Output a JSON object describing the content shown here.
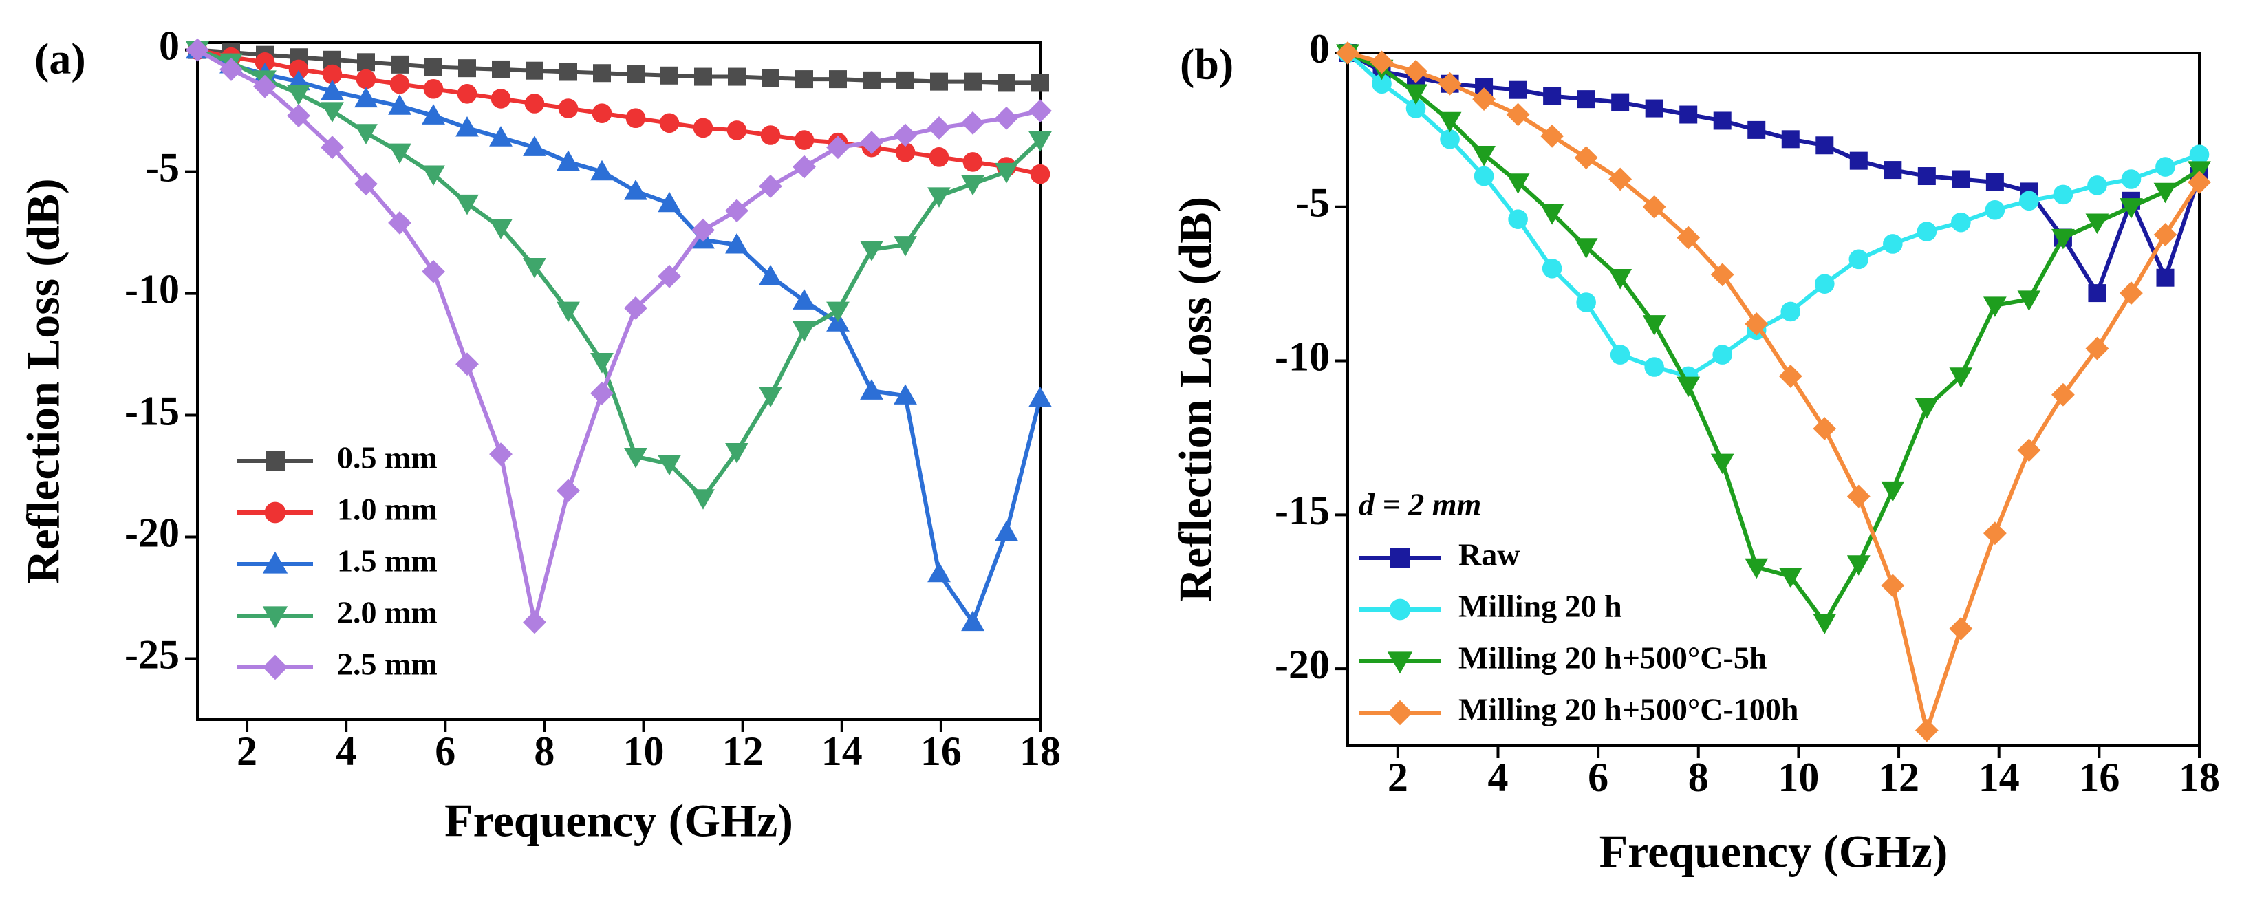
{
  "chart_data": [
    {
      "type": "line",
      "panel_label": "(a)",
      "xlabel": "Frequency (GHz)",
      "ylabel": "Reflection Loss (dB)",
      "xlim": [
        1,
        18
      ],
      "ylim": [
        -27.5,
        0.3
      ],
      "xticks": [
        2,
        4,
        6,
        8,
        10,
        12,
        14,
        16,
        18
      ],
      "yticks": [
        0,
        -5,
        -10,
        -15,
        -20,
        -25
      ],
      "legend": "lower left",
      "x": [
        1,
        1.68,
        2.36,
        3.04,
        3.72,
        4.4,
        5.08,
        5.76,
        6.44,
        7.12,
        7.8,
        8.48,
        9.16,
        9.84,
        10.52,
        11.2,
        11.88,
        12.56,
        13.24,
        13.92,
        14.6,
        15.28,
        15.96,
        16.64,
        17.32,
        18
      ],
      "series": [
        {
          "name": "0.5 mm",
          "color": "#4d4d4d",
          "marker": "square",
          "values": [
            0,
            -0.1,
            -0.2,
            -0.3,
            -0.4,
            -0.5,
            -0.6,
            -0.7,
            -0.75,
            -0.8,
            -0.85,
            -0.9,
            -0.95,
            -1.0,
            -1.05,
            -1.1,
            -1.1,
            -1.15,
            -1.2,
            -1.2,
            -1.25,
            -1.25,
            -1.3,
            -1.3,
            -1.35,
            -1.35
          ]
        },
        {
          "name": "1.0 mm",
          "color": "#ee3333",
          "marker": "circle",
          "values": [
            0,
            -0.3,
            -0.5,
            -0.8,
            -1.0,
            -1.2,
            -1.4,
            -1.6,
            -1.8,
            -2.0,
            -2.2,
            -2.4,
            -2.6,
            -2.8,
            -3.0,
            -3.2,
            -3.3,
            -3.5,
            -3.7,
            -3.8,
            -4.0,
            -4.2,
            -4.4,
            -4.6,
            -4.8,
            -5.1
          ]
        },
        {
          "name": "1.5 mm",
          "color": "#2c6fd6",
          "marker": "triangle-up",
          "values": [
            0,
            -0.6,
            -1.0,
            -1.3,
            -1.7,
            -2.0,
            -2.3,
            -2.7,
            -3.2,
            -3.6,
            -4.0,
            -4.6,
            -5.0,
            -5.8,
            -6.3,
            -7.8,
            -8.0,
            -9.3,
            -10.3,
            -11.2,
            -14.0,
            -14.2,
            -21.5,
            -23.5,
            -19.8,
            -14.3
          ]
        },
        {
          "name": "2.0 mm",
          "color": "#3fa66b",
          "marker": "triangle-down",
          "values": [
            0,
            -0.5,
            -1.2,
            -1.8,
            -2.5,
            -3.4,
            -4.2,
            -5.1,
            -6.3,
            -7.3,
            -8.9,
            -10.7,
            -12.8,
            -16.7,
            -17.0,
            -18.4,
            -16.5,
            -14.2,
            -11.5,
            -10.7,
            -8.2,
            -8.0,
            -6.0,
            -5.5,
            -5.0,
            -3.7
          ]
        },
        {
          "name": "2.5 mm",
          "color": "#b07fe0",
          "marker": "diamond",
          "values": [
            0,
            -0.8,
            -1.5,
            -2.7,
            -4.0,
            -5.5,
            -7.1,
            -9.1,
            -12.9,
            -16.6,
            -23.5,
            -18.1,
            -14.1,
            -10.6,
            -9.3,
            -7.4,
            -6.6,
            -5.6,
            -4.8,
            -4.0,
            -3.8,
            -3.5,
            -3.2,
            -3.0,
            -2.8,
            -2.5
          ]
        }
      ]
    },
    {
      "type": "line",
      "panel_label": "(b)",
      "xlabel": "Frequency (GHz)",
      "ylabel": "Reflection Loss (dB)",
      "xlim": [
        1,
        18
      ],
      "ylim": [
        -22.5,
        0
      ],
      "xticks": [
        2,
        4,
        6,
        8,
        10,
        12,
        14,
        16,
        18
      ],
      "yticks": [
        0,
        -5,
        -10,
        -15,
        -20
      ],
      "legend": "lower left",
      "annotation": "d = 2 mm",
      "x": [
        1,
        1.68,
        2.36,
        3.04,
        3.72,
        4.4,
        5.08,
        5.76,
        6.44,
        7.12,
        7.8,
        8.48,
        9.16,
        9.84,
        10.52,
        11.2,
        11.88,
        12.56,
        13.24,
        13.92,
        14.6,
        15.28,
        15.96,
        16.64,
        17.32,
        18
      ],
      "series": [
        {
          "name": "Raw",
          "color": "#1a1a9e",
          "marker": "square",
          "values": [
            0,
            -0.6,
            -0.8,
            -1.0,
            -1.1,
            -1.2,
            -1.4,
            -1.5,
            -1.6,
            -1.8,
            -2.0,
            -2.2,
            -2.5,
            -2.8,
            -3.0,
            -3.5,
            -3.8,
            -4.0,
            -4.1,
            -4.2,
            -4.5,
            -6.0,
            -7.8,
            -4.8,
            -7.3,
            -4.0
          ]
        },
        {
          "name": "Milling 20 h",
          "color": "#33e6f0",
          "marker": "circle",
          "values": [
            0,
            -1.0,
            -1.8,
            -2.8,
            -4.0,
            -5.4,
            -7.0,
            -8.1,
            -9.8,
            -10.2,
            -10.5,
            -9.8,
            -9.0,
            -8.4,
            -7.5,
            -6.7,
            -6.2,
            -5.8,
            -5.5,
            -5.1,
            -4.8,
            -4.6,
            -4.3,
            -4.1,
            -3.7,
            -3.3
          ]
        },
        {
          "name": "Milling 20 h+500°C-5h",
          "color": "#1e9e1e",
          "marker": "triangle-down",
          "values": [
            0,
            -0.5,
            -1.3,
            -2.2,
            -3.3,
            -4.2,
            -5.2,
            -6.3,
            -7.3,
            -8.8,
            -10.8,
            -13.3,
            -16.7,
            -17.0,
            -18.5,
            -16.6,
            -14.2,
            -11.5,
            -10.5,
            -8.2,
            -8.0,
            -6.0,
            -5.5,
            -5.0,
            -4.5,
            -3.8
          ]
        },
        {
          "name": "Milling 20 h+500°C-100h",
          "color": "#f58b3c",
          "marker": "diamond",
          "values": [
            0,
            -0.3,
            -0.6,
            -1.0,
            -1.5,
            -2.0,
            -2.7,
            -3.4,
            -4.1,
            -5.0,
            -6.0,
            -7.2,
            -8.8,
            -10.5,
            -12.2,
            -14.4,
            -17.3,
            -22.0,
            -18.7,
            -15.6,
            -12.9,
            -11.1,
            -9.6,
            -7.8,
            -5.9,
            -4.2
          ]
        }
      ]
    }
  ]
}
